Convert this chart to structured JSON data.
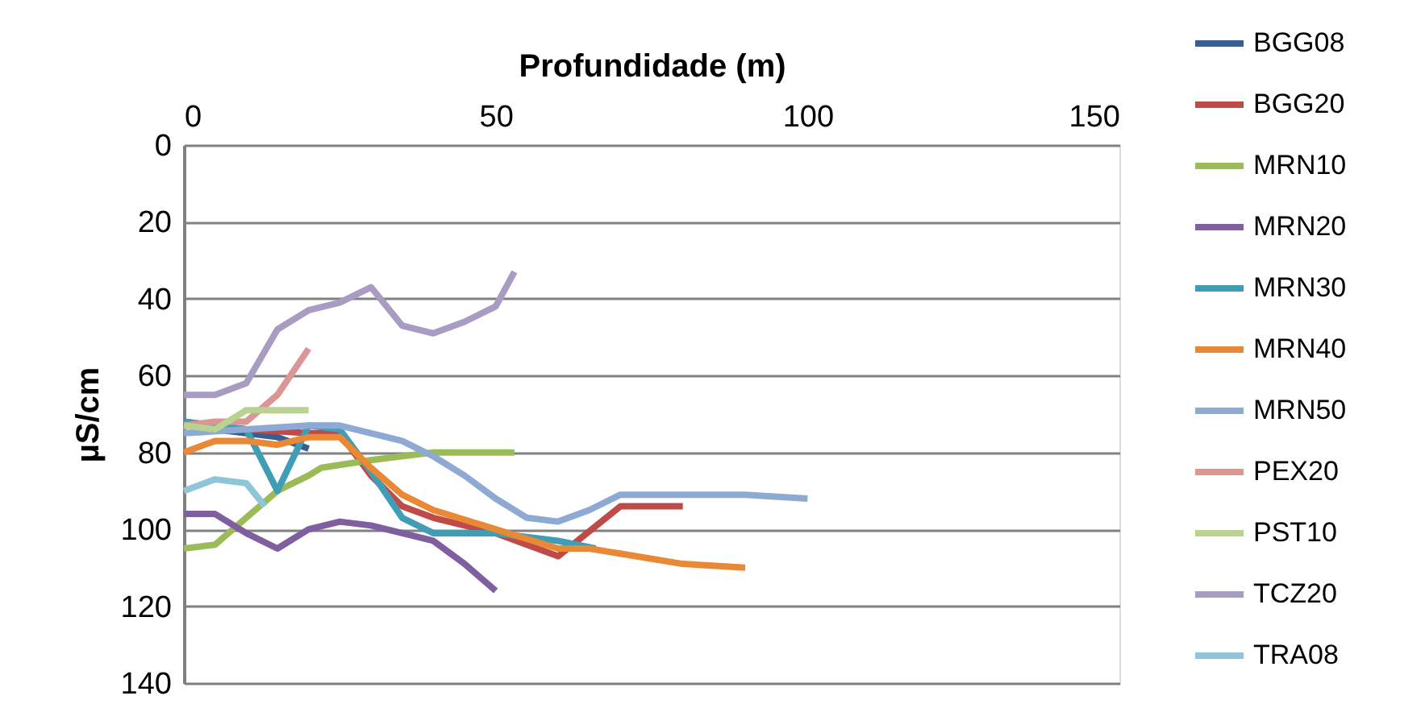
{
  "chart_data": {
    "type": "line",
    "xlabel": "Profundidade (m)",
    "ylabel": "µS/cm",
    "xlim": [
      0,
      150
    ],
    "xticks": [
      0,
      50,
      100,
      150
    ],
    "ylim": [
      140,
      0
    ],
    "yticks": [
      0,
      20,
      40,
      60,
      80,
      100,
      120,
      140
    ],
    "grid": "y",
    "legend": "right",
    "marker": "none",
    "line_style": "solid",
    "series": [
      {
        "name": "BGG08",
        "color": "#376092",
        "x": [
          0,
          5,
          10,
          15,
          20
        ],
        "values": [
          72,
          74,
          75,
          76,
          79
        ]
      },
      {
        "name": "BGG20",
        "color": "#be4b48",
        "x": [
          0,
          10,
          20,
          25,
          30,
          35,
          40,
          50,
          60,
          70,
          80
        ],
        "values": [
          72,
          74,
          75,
          75,
          86,
          94,
          97,
          101,
          107,
          94,
          94
        ]
      },
      {
        "name": "MRN10",
        "color": "#9bbb59",
        "x": [
          0,
          5,
          10,
          15,
          20,
          22,
          30,
          40,
          53
        ],
        "values": [
          105,
          104,
          97,
          90,
          86,
          84,
          82,
          80,
          80
        ]
      },
      {
        "name": "MRN20",
        "color": "#7f5f9f",
        "x": [
          0,
          5,
          10,
          15,
          20,
          25,
          30,
          35,
          40,
          45,
          50
        ],
        "values": [
          96,
          96,
          101,
          105,
          100,
          98,
          99,
          101,
          103,
          109,
          116
        ]
      },
      {
        "name": "MRN30",
        "color": "#3f9db5",
        "x": [
          0,
          5,
          10,
          15,
          20,
          25,
          30,
          35,
          40,
          50,
          60,
          66
        ],
        "values": [
          72,
          73,
          74,
          90,
          73,
          74,
          85,
          97,
          101,
          101,
          103,
          105
        ]
      },
      {
        "name": "MRN40",
        "color": "#e98936",
        "x": [
          0,
          5,
          10,
          15,
          20,
          25,
          30,
          35,
          40,
          50,
          60,
          65,
          80,
          90
        ],
        "values": [
          80,
          77,
          77,
          78,
          76,
          76,
          84,
          91,
          95,
          100,
          105,
          105,
          109,
          110
        ]
      },
      {
        "name": "MRN50",
        "color": "#8eaad3",
        "x": [
          0,
          10,
          20,
          25,
          30,
          35,
          40,
          45,
          50,
          55,
          60,
          65,
          70,
          80,
          90,
          100
        ],
        "values": [
          75,
          74,
          73,
          73,
          75,
          77,
          81,
          86,
          92,
          97,
          98,
          95,
          91,
          91,
          91,
          92
        ]
      },
      {
        "name": "PEX20",
        "color": "#d99694",
        "x": [
          0,
          5,
          10,
          15,
          20
        ],
        "values": [
          73,
          72,
          72,
          65,
          53
        ]
      },
      {
        "name": "PST10",
        "color": "#b9d28f",
        "x": [
          0,
          5,
          10,
          15,
          20
        ],
        "values": [
          73,
          74,
          69,
          69,
          69
        ]
      },
      {
        "name": "TCZ20",
        "color": "#a99bc1",
        "x": [
          0,
          5,
          10,
          15,
          20,
          25,
          30,
          35,
          40,
          45,
          50,
          53
        ],
        "values": [
          65,
          65,
          62,
          48,
          43,
          41,
          37,
          47,
          49,
          46,
          42,
          33
        ]
      },
      {
        "name": "TRA08",
        "color": "#8ec5d9",
        "x": [
          0,
          5,
          10,
          13
        ],
        "values": [
          90,
          87,
          88,
          94
        ]
      }
    ]
  }
}
